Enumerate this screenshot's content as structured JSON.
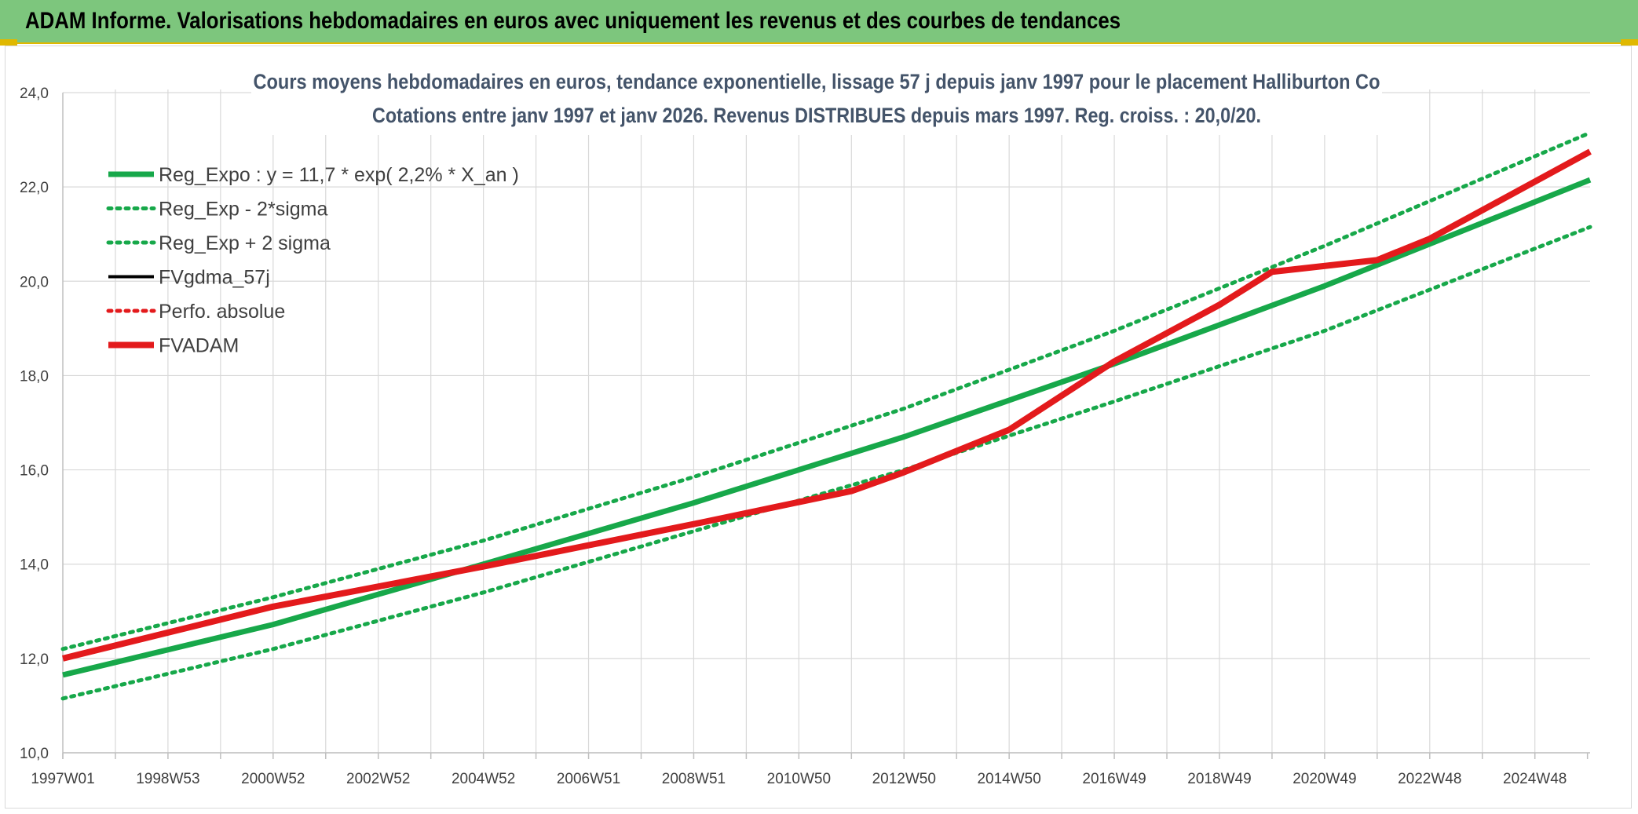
{
  "header": {
    "title": "ADAM Informe. Valorisations hebdomadaires en euros avec uniquement les revenus et des courbes de tendances"
  },
  "colors": {
    "banner": "#7dc67d",
    "accent": "#e0b800",
    "green": "#17a84a",
    "red": "#e31a1c",
    "black": "#000000"
  },
  "chart_data": {
    "type": "line",
    "title": "Cours moyens hebdomadaires en euros, tendance exponentielle, lissage 57 j depuis janv 1997 pour le placement Halliburton Co",
    "subtitle": "Cotations entre janv 1997 et janv 2026. Revenus DISTRIBUES depuis mars 1997. Reg. croiss. : 20,0/20.",
    "xlabel": "",
    "ylabel": "",
    "x_range": [
      1997.0,
      2026.05
    ],
    "ylim": [
      10,
      24
    ],
    "y_ticks": [
      "10,0",
      "12,0",
      "14,0",
      "16,0",
      "18,0",
      "20,0",
      "22,0",
      "24,0"
    ],
    "x_tick_labels": [
      "1997W01",
      "1998W53",
      "2000W52",
      "2002W52",
      "2004W52",
      "2006W51",
      "2008W51",
      "2010W50",
      "2012W50",
      "2014W50",
      "2016W49",
      "2018W49",
      "2020W49",
      "2022W48",
      "2024W48"
    ],
    "grid": true,
    "legend_position": "top-left",
    "series": [
      {
        "name": "Reg_Expo : y = 11,7 * exp( 2,2% *  X_an )",
        "style": "solid-thick",
        "color": "#17a84a",
        "points": [
          [
            1997.0,
            11.65
          ],
          [
            2001.0,
            12.72
          ],
          [
            2005.0,
            14.0
          ],
          [
            2009.0,
            15.3
          ],
          [
            2013.0,
            16.7
          ],
          [
            2017.0,
            18.25
          ],
          [
            2021.0,
            19.9
          ],
          [
            2026.05,
            22.15
          ]
        ]
      },
      {
        "name": "Reg_Exp - 2*sigma",
        "style": "dotted",
        "color": "#17a84a",
        "points": [
          [
            1997.0,
            11.15
          ],
          [
            2001.0,
            12.2
          ],
          [
            2005.0,
            13.4
          ],
          [
            2009.0,
            14.7
          ],
          [
            2013.0,
            16.0
          ],
          [
            2017.0,
            17.45
          ],
          [
            2021.0,
            18.95
          ],
          [
            2026.05,
            21.15
          ]
        ]
      },
      {
        "name": "Reg_Exp + 2 sigma",
        "style": "dotted",
        "color": "#17a84a",
        "points": [
          [
            1997.0,
            12.2
          ],
          [
            2001.0,
            13.3
          ],
          [
            2005.0,
            14.5
          ],
          [
            2009.0,
            15.85
          ],
          [
            2013.0,
            17.3
          ],
          [
            2017.0,
            18.95
          ],
          [
            2021.0,
            20.75
          ],
          [
            2026.05,
            23.15
          ]
        ]
      },
      {
        "name": "FVgdma_57j",
        "style": "solid",
        "color": "#000000",
        "points": []
      },
      {
        "name": "Perfo. absolue",
        "style": "dotted",
        "color": "#e31a1c",
        "points": []
      },
      {
        "name": "FVADAM",
        "style": "solid-thick",
        "color": "#e31a1c",
        "points": [
          [
            1997.0,
            12.0
          ],
          [
            2001.0,
            13.1
          ],
          [
            2005.0,
            13.95
          ],
          [
            2009.0,
            14.85
          ],
          [
            2012.0,
            15.55
          ],
          [
            2013.0,
            15.95
          ],
          [
            2015.0,
            16.85
          ],
          [
            2017.0,
            18.3
          ],
          [
            2019.0,
            19.5
          ],
          [
            2020.0,
            20.2
          ],
          [
            2022.0,
            20.45
          ],
          [
            2023.0,
            20.9
          ],
          [
            2026.05,
            22.75
          ]
        ]
      }
    ]
  }
}
